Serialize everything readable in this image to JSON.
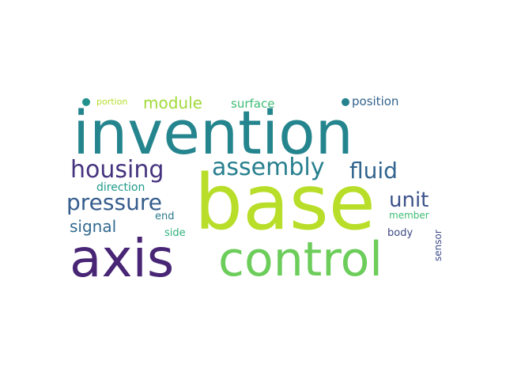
{
  "words": [
    {
      "key": "invention",
      "text": "invention",
      "color": "#25858e"
    },
    {
      "key": "base",
      "text": "base",
      "color": "#b8de29"
    },
    {
      "key": "axis",
      "text": "axis",
      "color": "#482575"
    },
    {
      "key": "control",
      "text": "control",
      "color": "#6ccd5a"
    },
    {
      "key": "housing",
      "text": "housing",
      "color": "#46337e"
    },
    {
      "key": "assembly",
      "text": "assembly",
      "color": "#277f8e"
    },
    {
      "key": "fluid",
      "text": "fluid",
      "color": "#32648e"
    },
    {
      "key": "pressure",
      "text": "pressure",
      "color": "#365d8d"
    },
    {
      "key": "unit",
      "text": "unit",
      "color": "#3b528b"
    },
    {
      "key": "module",
      "text": "module",
      "color": "#a0da39"
    },
    {
      "key": "signal",
      "text": "signal",
      "color": "#31688e"
    },
    {
      "key": "surface",
      "text": "surface",
      "color": "#3dbc74"
    },
    {
      "key": "position",
      "text": "position",
      "color": "#33638d"
    },
    {
      "key": "direction",
      "text": "direction",
      "color": "#1e9b8a"
    },
    {
      "key": "end",
      "text": "end",
      "color": "#2a788e"
    },
    {
      "key": "side",
      "text": "side",
      "color": "#2db27d"
    },
    {
      "key": "member",
      "text": "member",
      "color": "#3dbc74"
    },
    {
      "key": "body",
      "text": "body",
      "color": "#3e4a89"
    },
    {
      "key": "sensor",
      "text": "sensor",
      "color": "#3e4c8a"
    },
    {
      "key": "portion",
      "text": "portion",
      "color": "#b5de2b"
    }
  ],
  "dots": [
    {
      "key": "dot1",
      "color": "#21918c"
    },
    {
      "key": "dot2",
      "color": "#26828e"
    }
  ]
}
